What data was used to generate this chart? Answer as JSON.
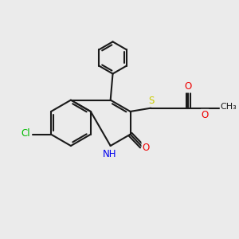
{
  "bg_color": "#ebebeb",
  "bond_color": "#1a1a1a",
  "line_width": 1.5,
  "atom_colors": {
    "N": "#0000ee",
    "O": "#ee0000",
    "S": "#cccc00",
    "Cl": "#00bb00",
    "C": "#1a1a1a"
  },
  "font_size": 8.5,
  "figsize": [
    3.0,
    3.0
  ],
  "dpi": 100
}
